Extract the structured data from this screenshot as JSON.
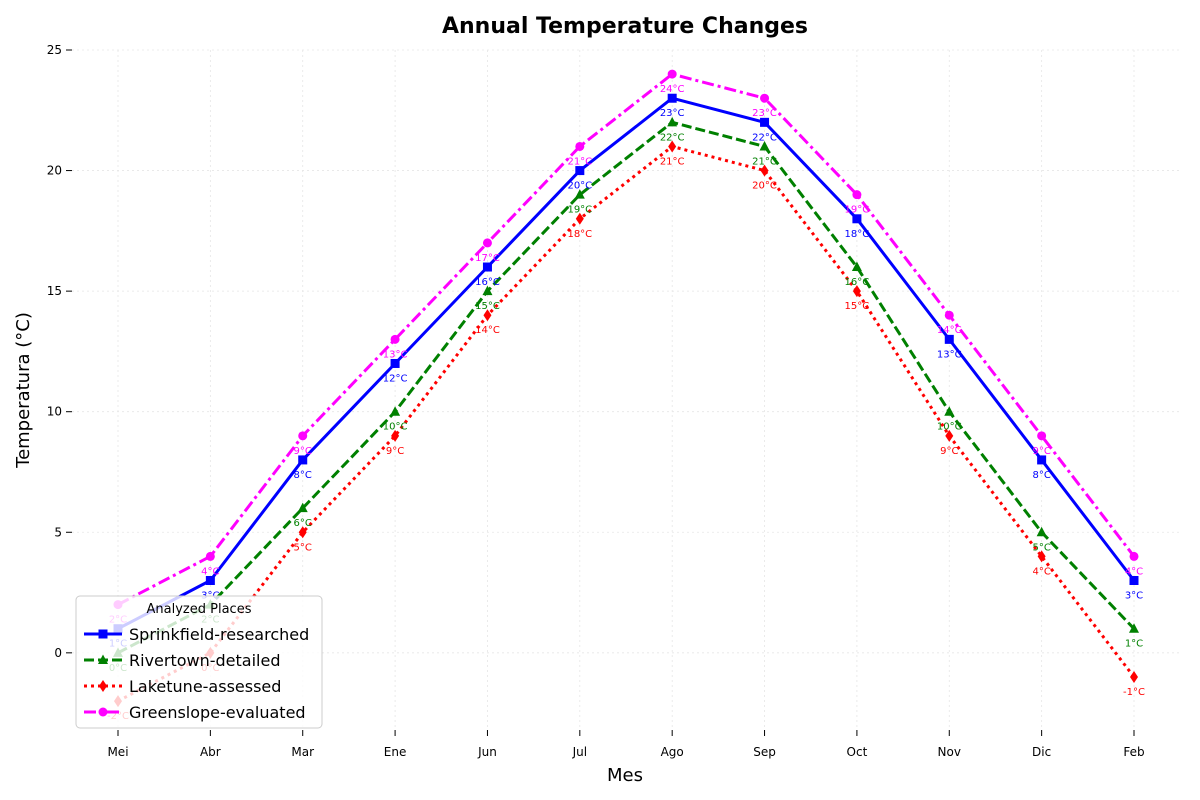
{
  "chart_data": {
    "type": "line",
    "title": "Annual Temperature Changes",
    "xlabel": "Mes",
    "ylabel": "Temperatura (°C)",
    "categories": [
      "Mei",
      "Abr",
      "Mar",
      "Ene",
      "Jun",
      "Jul",
      "Ago",
      "Sep",
      "Oct",
      "Nov",
      "Dic",
      "Feb"
    ],
    "ylim": [
      -3.2,
      25
    ],
    "yticks": [
      0,
      5,
      10,
      15,
      20,
      25
    ],
    "grid": true,
    "legend": {
      "title": "Analyzed Places",
      "placement": "bottom-left"
    },
    "value_suffix": "°C",
    "series": [
      {
        "name": "Sprinkfield-researched",
        "values": [
          1,
          3,
          8,
          12,
          16,
          20,
          23,
          22,
          18,
          13,
          8,
          3
        ],
        "color": "#0000ff",
        "dash": "solid",
        "marker": "square"
      },
      {
        "name": "Rivertown-detailed",
        "values": [
          0,
          2,
          6,
          10,
          15,
          19,
          22,
          21,
          16,
          10,
          5,
          1
        ],
        "color": "#008000",
        "dash": "dashed",
        "marker": "triangle"
      },
      {
        "name": "Laketune-assessed",
        "values": [
          -2,
          0,
          5,
          9,
          14,
          18,
          21,
          20,
          15,
          9,
          4,
          -1
        ],
        "color": "#ff0000",
        "dash": "dotted",
        "marker": "diamond"
      },
      {
        "name": "Greenslope-evaluated",
        "values": [
          2,
          4,
          9,
          13,
          17,
          21,
          24,
          23,
          19,
          14,
          9,
          4
        ],
        "color": "#ff00ff",
        "dash": "dashdot",
        "marker": "circle"
      }
    ]
  }
}
